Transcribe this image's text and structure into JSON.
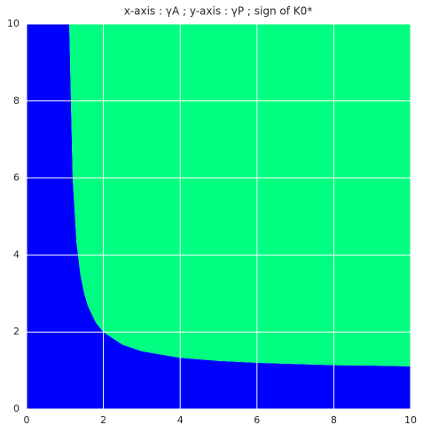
{
  "chart_data": {
    "type": "area",
    "title": "x-axis : γA ; y-axis : γP ; sign of K0*",
    "x": [
      1.111,
      1.2,
      1.3,
      1.4,
      1.5,
      1.6,
      1.8,
      2,
      2.5,
      3,
      4,
      5,
      6,
      7,
      8,
      9,
      10
    ],
    "values": [
      10.0,
      6.0,
      4.33,
      3.5,
      3.0,
      2.67,
      2.25,
      2.0,
      1.67,
      1.5,
      1.33,
      1.25,
      1.2,
      1.17,
      1.14,
      1.13,
      1.11
    ],
    "color_below": "#0000ff",
    "color_above": "#00ff80",
    "xlim": [
      0,
      10
    ],
    "ylim": [
      0,
      10
    ],
    "xticks": [
      0,
      2,
      4,
      6,
      8,
      10
    ],
    "yticks": [
      0,
      2,
      4,
      6,
      8,
      10
    ],
    "grid": true
  }
}
